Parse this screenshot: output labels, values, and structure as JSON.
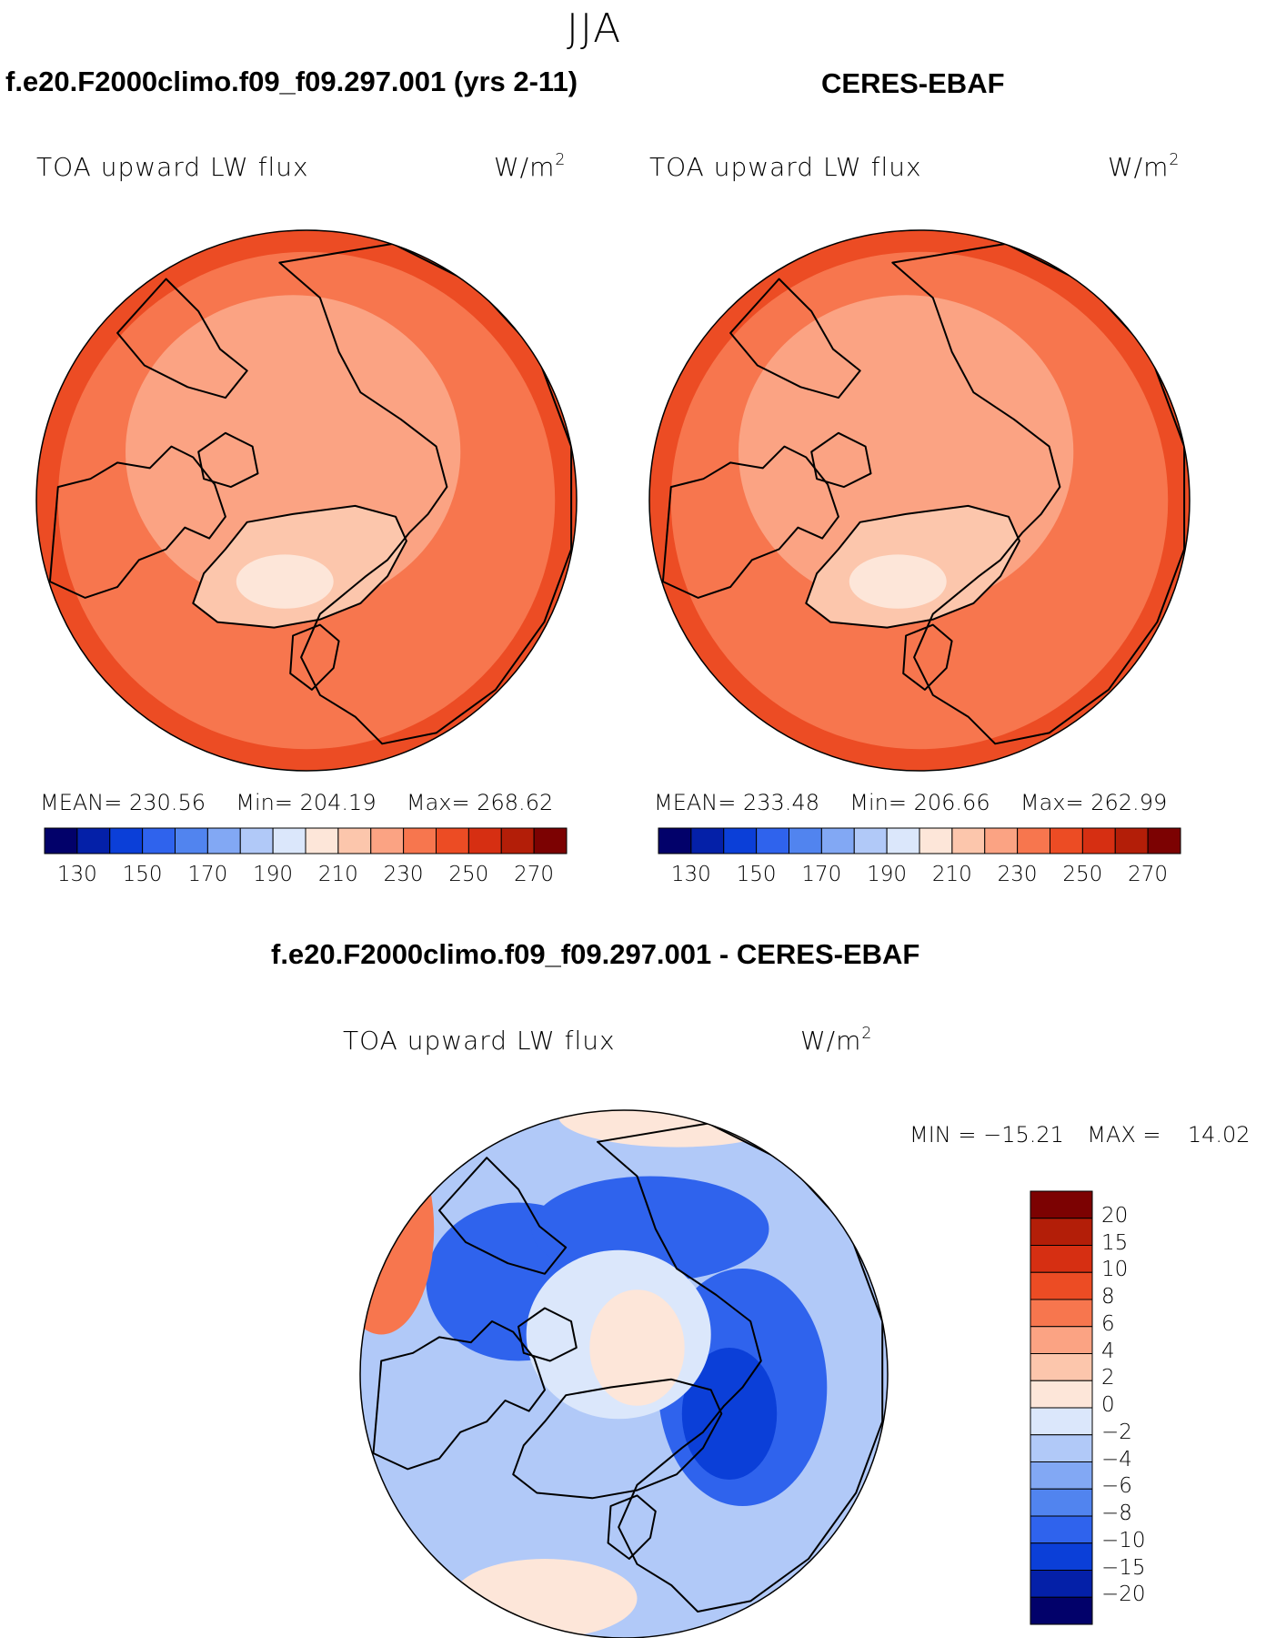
{
  "season": "JJA",
  "panels": [
    {
      "case_title": "f.e20.F2000climo.f09_f09.297.001 (yrs 2-11)",
      "variable": "TOA upward LW flux",
      "units_base": "W/m",
      "units_exp": "2",
      "stats": {
        "mean_label": "MEAN=",
        "mean": "230.56",
        "min_label": "Min=",
        "min": "204.19",
        "max_label": "Max=",
        "max": "268.62"
      }
    },
    {
      "case_title": "CERES-EBAF",
      "variable": "TOA upward LW flux",
      "units_base": "W/m",
      "units_exp": "2",
      "stats": {
        "mean_label": "MEAN=",
        "mean": "233.48",
        "min_label": "Min=",
        "min": "206.66",
        "max_label": "Max=",
        "max": "262.99"
      }
    }
  ],
  "diff": {
    "case_title": "f.e20.F2000climo.f09_f09.297.001 - CERES-EBAF",
    "variable": "TOA upward LW flux",
    "units_base": "W/m",
    "units_exp": "2",
    "minmax": {
      "min_label": "MIN =",
      "min": "−15.21",
      "max_label": "MAX =",
      "max": "14.02"
    }
  },
  "main_colorbar": {
    "colors": [
      "#02016a",
      "#0420a8",
      "#0b3fd8",
      "#2f63ed",
      "#5184ef",
      "#82a8f4",
      "#b1c9f8",
      "#dbe7fb",
      "#fde6d9",
      "#fcc6ac",
      "#fba383",
      "#f7764e",
      "#ec4c24",
      "#d62f12",
      "#b31e08",
      "#7c0202"
    ],
    "labels": [
      "130",
      "150",
      "170",
      "190",
      "210",
      "230",
      "250",
      "270"
    ]
  },
  "diff_colorbar": {
    "colors": [
      "#7c0202",
      "#b31e08",
      "#d62f12",
      "#ec4c24",
      "#f7764e",
      "#fba383",
      "#fcc6ac",
      "#fde6d9",
      "#dbe7fb",
      "#b1c9f8",
      "#82a8f4",
      "#5184ef",
      "#2f63ed",
      "#0b3fd8",
      "#0420a8",
      "#02016a"
    ],
    "labels": [
      "20",
      "15",
      "10",
      "8",
      "6",
      "4",
      "2",
      "0",
      "−2",
      "−4",
      "−6",
      "−8",
      "−10",
      "−15",
      "−20"
    ]
  },
  "map_colors": {
    "ocean_low": "#f7764e",
    "ocean_high": "#ec4c24",
    "arctic": "#fba383",
    "greenland": "#fcc6ac",
    "greenland_core": "#fde6d9",
    "diff_base": "#b1c9f8",
    "diff_strong": "#2f63ed",
    "diff_core": "#0b3fd8",
    "diff_pale": "#dbe7fb",
    "diff_warm": "#fde6d9",
    "diff_hot": "#f7764e",
    "coast": "#000000"
  }
}
